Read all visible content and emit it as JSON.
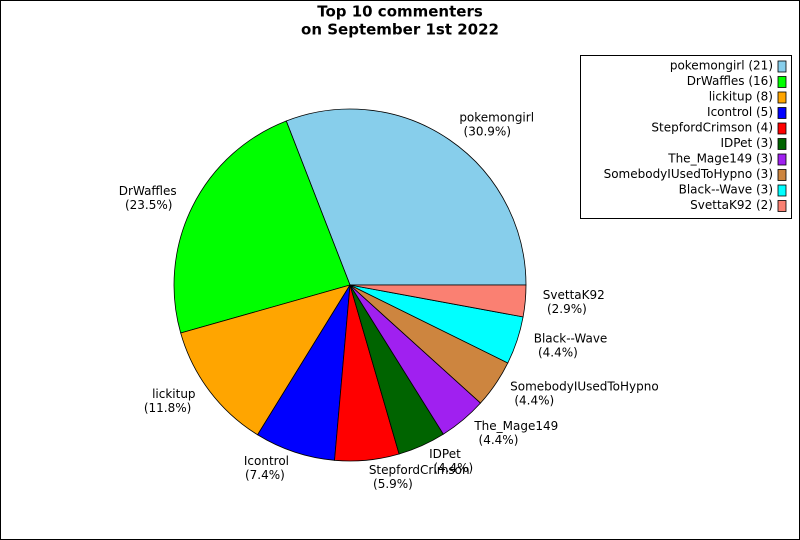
{
  "chart_data": {
    "type": "pie",
    "title": [
      "Top 10 commenters",
      "on September 1st 2022"
    ],
    "categories": [
      "pokemongirl",
      "DrWaffles",
      "lickitup",
      "Icontrol",
      "StepfordCrimson",
      "IDPet",
      "The_Mage149",
      "SomebodyIUsedToHypno",
      "Black--Wave",
      "SvettaK92"
    ],
    "values": [
      30.9,
      23.5,
      11.8,
      7.4,
      5.9,
      4.4,
      4.4,
      4.4,
      4.4,
      2.9
    ],
    "value_labels": [
      "(30.9%)",
      "(23.5%)",
      "(11.8%)",
      "(7.4%)",
      "(5.9%)",
      "(4.4%)",
      "(4.4%)",
      "(4.4%)",
      "(4.4%)",
      "(2.9%)"
    ],
    "colors": [
      "#87ceeb",
      "#00ff00",
      "#ffa500",
      "#0000ff",
      "#ff0000",
      "#006400",
      "#a020f0",
      "#cd853f",
      "#00ffff",
      "#fa8072"
    ],
    "legend_labels": [
      "pokemongirl (21)",
      "DrWaffles (16)",
      "lickitup (8)",
      "Icontrol (5)",
      "StepfordCrimson (4)",
      "IDPet (3)",
      "The_Mage149 (3)",
      "SomebodyIUsedToHypno (3)",
      "Black--Wave (3)",
      "SvettaK92 (2)"
    ],
    "legend": "upper right"
  }
}
